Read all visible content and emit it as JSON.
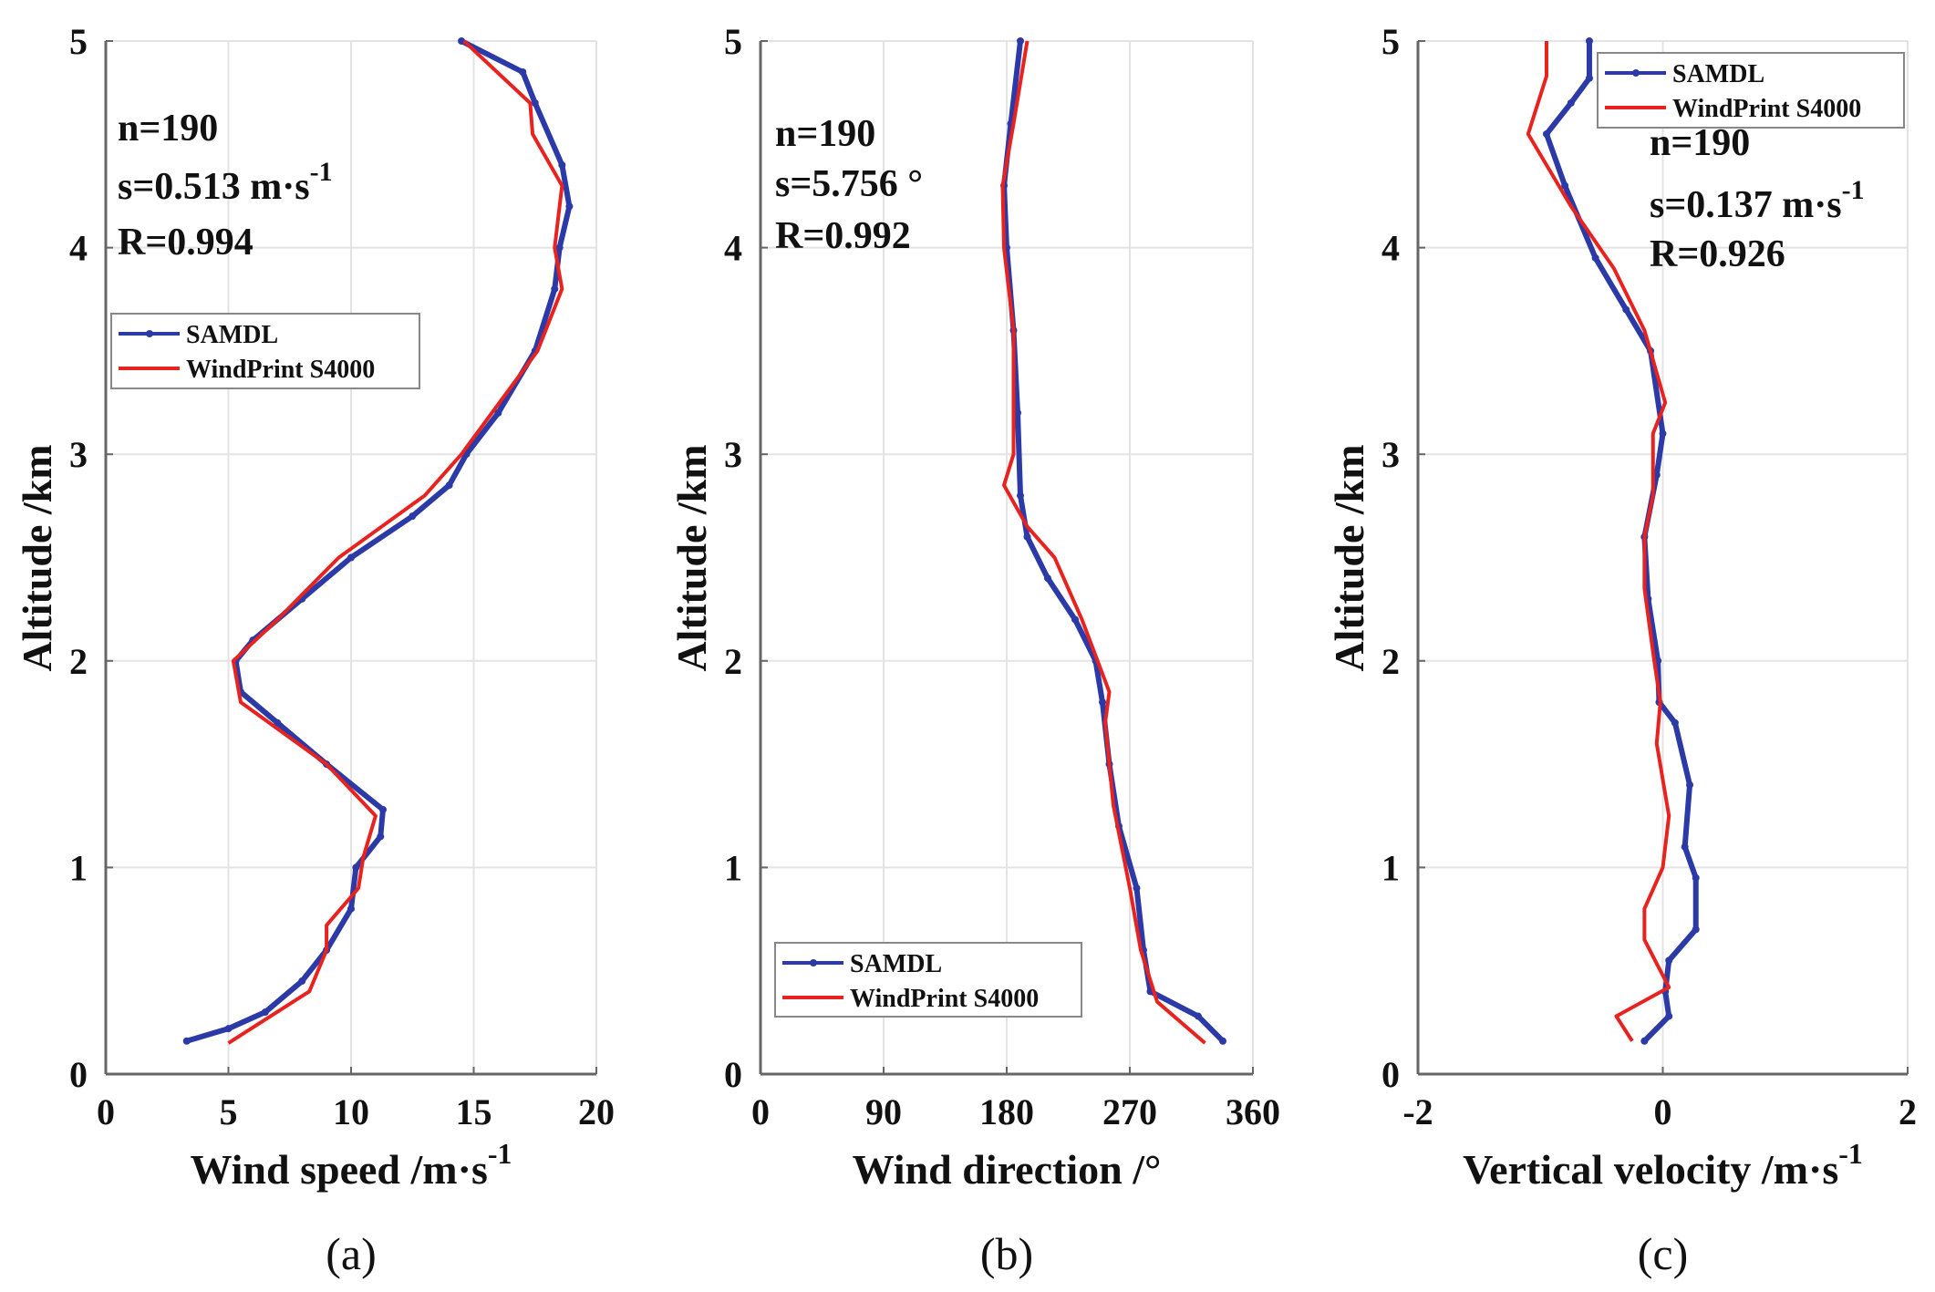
{
  "colors": {
    "samdl": "#2b3aa6",
    "windprint": "#e8221e",
    "grid": "#e3e3e3",
    "axis": "#666666"
  },
  "chart_data": [
    {
      "type": "line",
      "caption": "(a)",
      "xlabel": "Wind speed  /m·s",
      "xlabel_sup": "-1",
      "ylabel": "Altitude /km",
      "xlim": [
        0,
        20
      ],
      "ylim": [
        0,
        5
      ],
      "xticks": [
        0,
        5,
        10,
        15,
        20
      ],
      "yticks": [
        0,
        1,
        2,
        3,
        4,
        5
      ],
      "grid": true,
      "legend_placement": "upper-left",
      "stats": {
        "n": "n=190",
        "s": "s=0.513 m·s",
        "s_sup": "-1",
        "R": "R=0.994"
      },
      "series": [
        {
          "name": "SAMDL",
          "points": [
            [
              3.3,
              0.16
            ],
            [
              5,
              0.22
            ],
            [
              6.5,
              0.3
            ],
            [
              8,
              0.45
            ],
            [
              9,
              0.6
            ],
            [
              10,
              0.8
            ],
            [
              10.2,
              1.0
            ],
            [
              11.2,
              1.15
            ],
            [
              11.3,
              1.28
            ],
            [
              9,
              1.5
            ],
            [
              7,
              1.7
            ],
            [
              5.5,
              1.85
            ],
            [
              5.3,
              2.0
            ],
            [
              6,
              2.1
            ],
            [
              8,
              2.3
            ],
            [
              10,
              2.5
            ],
            [
              12.5,
              2.7
            ],
            [
              14,
              2.85
            ],
            [
              14.7,
              3.0
            ],
            [
              16,
              3.2
            ],
            [
              17.5,
              3.5
            ],
            [
              18.3,
              3.8
            ],
            [
              18.5,
              4.0
            ],
            [
              18.9,
              4.2
            ],
            [
              18.6,
              4.4
            ],
            [
              17.5,
              4.7
            ],
            [
              17,
              4.85
            ],
            [
              14.5,
              5.0
            ]
          ]
        },
        {
          "name": "WindPrint S4000",
          "points": [
            [
              5,
              0.15
            ],
            [
              8.3,
              0.4
            ],
            [
              9,
              0.6
            ],
            [
              9,
              0.72
            ],
            [
              10.3,
              0.9
            ],
            [
              10.5,
              1.05
            ],
            [
              11,
              1.25
            ],
            [
              9,
              1.5
            ],
            [
              5.5,
              1.8
            ],
            [
              5.2,
              2.0
            ],
            [
              7,
              2.2
            ],
            [
              9.5,
              2.5
            ],
            [
              13,
              2.8
            ],
            [
              14.5,
              3.0
            ],
            [
              17.6,
              3.5
            ],
            [
              18.6,
              3.8
            ],
            [
              18.3,
              4.0
            ],
            [
              18.6,
              4.3
            ],
            [
              17.4,
              4.55
            ],
            [
              17.3,
              4.7
            ],
            [
              14.6,
              5.0
            ]
          ]
        }
      ]
    },
    {
      "type": "line",
      "caption": "(b)",
      "xlabel": "Wind direction  /°",
      "xlabel_sup": "",
      "ylabel": "Altitude /km",
      "xlim": [
        0,
        360
      ],
      "ylim": [
        0,
        5
      ],
      "xticks": [
        0,
        90,
        180,
        270,
        360
      ],
      "yticks": [
        0,
        1,
        2,
        3,
        4,
        5
      ],
      "grid": true,
      "legend_placement": "lower-left",
      "stats": {
        "n": "n=190",
        "s": "s=5.756 °",
        "s_sup": "",
        "R": "R=0.992"
      },
      "series": [
        {
          "name": "SAMDL",
          "points": [
            [
              338,
              0.16
            ],
            [
              320,
              0.28
            ],
            [
              285,
              0.4
            ],
            [
              280,
              0.6
            ],
            [
              275,
              0.9
            ],
            [
              262,
              1.2
            ],
            [
              255,
              1.5
            ],
            [
              250,
              1.8
            ],
            [
              245,
              2.0
            ],
            [
              230,
              2.2
            ],
            [
              210,
              2.4
            ],
            [
              195,
              2.6
            ],
            [
              190,
              2.8
            ],
            [
              188,
              3.2
            ],
            [
              185,
              3.6
            ],
            [
              180,
              4.0
            ],
            [
              178,
              4.3
            ],
            [
              183,
              4.6
            ],
            [
              190,
              5.0
            ]
          ]
        },
        {
          "name": "WindPrint S4000",
          "points": [
            [
              325,
              0.15
            ],
            [
              290,
              0.35
            ],
            [
              278,
              0.6
            ],
            [
              270,
              0.9
            ],
            [
              258,
              1.3
            ],
            [
              252,
              1.7
            ],
            [
              255,
              1.85
            ],
            [
              235,
              2.2
            ],
            [
              215,
              2.5
            ],
            [
              195,
              2.65
            ],
            [
              178,
              2.85
            ],
            [
              185,
              3.0
            ],
            [
              185,
              3.6
            ],
            [
              178,
              4.0
            ],
            [
              177,
              4.3
            ],
            [
              185,
              4.6
            ],
            [
              195,
              5.0
            ]
          ]
        }
      ]
    },
    {
      "type": "line",
      "caption": "(c)",
      "xlabel": "Vertical velocity /m·s",
      "xlabel_sup": "-1",
      "ylabel": "Altitude /km",
      "xlim": [
        -2,
        2
      ],
      "ylim": [
        0,
        5
      ],
      "xticks": [
        -2,
        0,
        2
      ],
      "yticks": [
        0,
        1,
        2,
        3,
        4,
        5
      ],
      "grid": true,
      "legend_placement": "upper-right",
      "stats": {
        "n": "n=190",
        "s": "s=0.137 m·s",
        "s_sup": "-1",
        "R": "R=0.926"
      },
      "series": [
        {
          "name": "SAMDL",
          "points": [
            [
              -0.15,
              0.16
            ],
            [
              0.05,
              0.28
            ],
            [
              0.02,
              0.4
            ],
            [
              0.05,
              0.55
            ],
            [
              0.27,
              0.7
            ],
            [
              0.27,
              0.95
            ],
            [
              0.18,
              1.1
            ],
            [
              0.22,
              1.4
            ],
            [
              0.1,
              1.7
            ],
            [
              -0.03,
              1.8
            ],
            [
              -0.04,
              2.0
            ],
            [
              -0.12,
              2.3
            ],
            [
              -0.15,
              2.6
            ],
            [
              -0.05,
              2.9
            ],
            [
              0,
              3.1
            ],
            [
              -0.1,
              3.5
            ],
            [
              -0.3,
              3.7
            ],
            [
              -0.55,
              3.95
            ],
            [
              -0.8,
              4.3
            ],
            [
              -0.95,
              4.55
            ],
            [
              -0.75,
              4.7
            ],
            [
              -0.6,
              4.82
            ],
            [
              -0.6,
              5.0
            ]
          ]
        },
        {
          "name": "WindPrint S4000",
          "points": [
            [
              -0.25,
              0.16
            ],
            [
              -0.38,
              0.28
            ],
            [
              0.05,
              0.42
            ],
            [
              -0.15,
              0.65
            ],
            [
              -0.15,
              0.8
            ],
            [
              0,
              1.0
            ],
            [
              0.05,
              1.25
            ],
            [
              -0.05,
              1.6
            ],
            [
              -0.02,
              1.8
            ],
            [
              -0.07,
              2.0
            ],
            [
              -0.15,
              2.35
            ],
            [
              -0.15,
              2.6
            ],
            [
              -0.08,
              2.8
            ],
            [
              -0.08,
              3.1
            ],
            [
              0.02,
              3.25
            ],
            [
              -0.15,
              3.6
            ],
            [
              -0.4,
              3.9
            ],
            [
              -0.75,
              4.2
            ],
            [
              -1.1,
              4.55
            ],
            [
              -0.95,
              4.83
            ],
            [
              -0.95,
              5.0
            ]
          ]
        }
      ]
    }
  ]
}
